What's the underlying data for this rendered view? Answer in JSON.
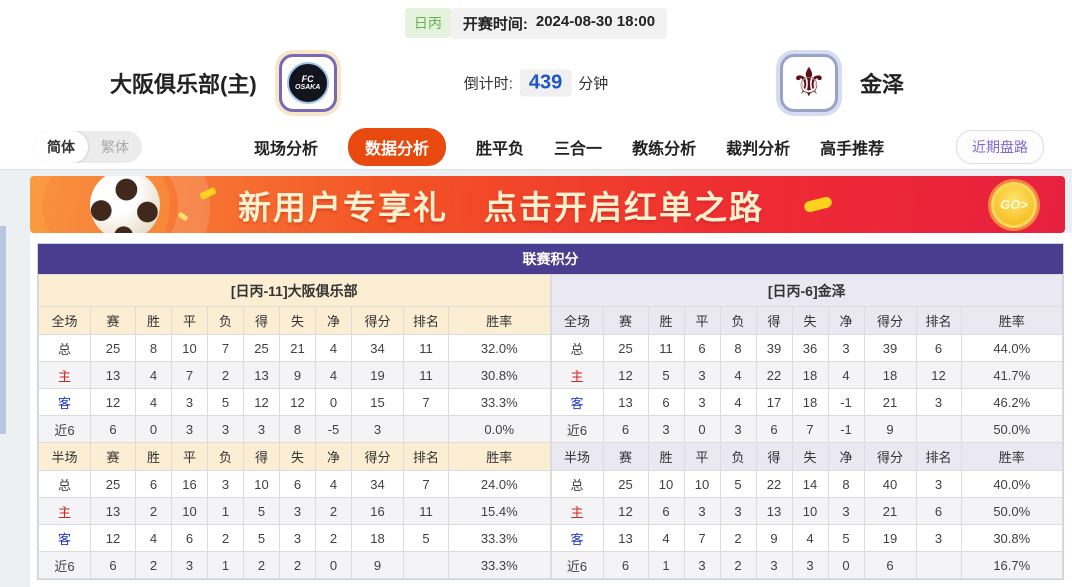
{
  "colors": {
    "accent": "#E8490F",
    "table_title_bg": "#4A3D90",
    "home_section_bg": "#FBEED3",
    "away_section_bg": "#E9E8F3",
    "home_label": "#CC2222",
    "away_label": "#2337C6",
    "countdown_value": "#1D56C6",
    "league_badge_text": "#6CAE53"
  },
  "top_bar": {
    "league_badge": "日丙",
    "kickoff_label": "开赛时间:",
    "kickoff_time": "2024-08-30 18:00"
  },
  "match": {
    "home_team": "大阪俱乐部(主)",
    "away_team": "金泽",
    "home_logo_text": "FC",
    "home_logo_subtext": "OSAKA",
    "countdown_label": "倒计时:",
    "countdown_value": "439",
    "countdown_unit": "分钟"
  },
  "icons": {
    "away_crest": "⚜",
    "go_arrow": "GO>"
  },
  "nav": {
    "language_toggle": {
      "simplified": "简体",
      "traditional": "繁体",
      "active": "简体"
    },
    "tabs": [
      "现场分析",
      "数据分析",
      "胜平负",
      "三合一",
      "教练分析",
      "裁判分析",
      "高手推荐"
    ],
    "active_tab": "数据分析",
    "recent_trend_button": "近期盘路"
  },
  "banner": {
    "text_main": "新用户专享礼",
    "text_secondary": "点击开启红单之路",
    "go_button": "GO>"
  },
  "league_table": {
    "title": "联赛积分",
    "columns_full_time": [
      "全场",
      "赛",
      "胜",
      "平",
      "负",
      "得",
      "失",
      "净",
      "得分",
      "排名",
      "胜率"
    ],
    "columns_half_time": [
      "半场",
      "赛",
      "胜",
      "平",
      "负",
      "得",
      "失",
      "净",
      "得分",
      "排名",
      "胜率"
    ],
    "home": {
      "section_label": "[日丙-11]大阪俱乐部",
      "full_time": {
        "rows": [
          {
            "type": "total",
            "label": "总",
            "values": [
              "25",
              "8",
              "10",
              "7",
              "25",
              "21",
              "4",
              "34",
              "11",
              "32.0%"
            ]
          },
          {
            "type": "home",
            "label": "主",
            "values": [
              "13",
              "4",
              "7",
              "2",
              "13",
              "9",
              "4",
              "19",
              "11",
              "30.8%"
            ]
          },
          {
            "type": "away",
            "label": "客",
            "values": [
              "12",
              "4",
              "3",
              "5",
              "12",
              "12",
              "0",
              "15",
              "7",
              "33.3%"
            ]
          },
          {
            "type": "recent6",
            "label": "近6",
            "values": [
              "6",
              "0",
              "3",
              "3",
              "3",
              "8",
              "-5",
              "3",
              "",
              "0.0%"
            ]
          }
        ]
      },
      "half_time": {
        "rows": [
          {
            "type": "total",
            "label": "总",
            "values": [
              "25",
              "6",
              "16",
              "3",
              "10",
              "6",
              "4",
              "34",
              "7",
              "24.0%"
            ]
          },
          {
            "type": "home",
            "label": "主",
            "values": [
              "13",
              "2",
              "10",
              "1",
              "5",
              "3",
              "2",
              "16",
              "11",
              "15.4%"
            ]
          },
          {
            "type": "away",
            "label": "客",
            "values": [
              "12",
              "4",
              "6",
              "2",
              "5",
              "3",
              "2",
              "18",
              "5",
              "33.3%"
            ]
          },
          {
            "type": "recent6",
            "label": "近6",
            "values": [
              "6",
              "2",
              "3",
              "1",
              "2",
              "2",
              "0",
              "9",
              "",
              "33.3%"
            ]
          }
        ]
      }
    },
    "away": {
      "section_label": "[日丙-6]金泽",
      "full_time": {
        "rows": [
          {
            "type": "total",
            "label": "总",
            "values": [
              "25",
              "11",
              "6",
              "8",
              "39",
              "36",
              "3",
              "39",
              "6",
              "44.0%"
            ]
          },
          {
            "type": "home",
            "label": "主",
            "values": [
              "12",
              "5",
              "3",
              "4",
              "22",
              "18",
              "4",
              "18",
              "12",
              "41.7%"
            ]
          },
          {
            "type": "away",
            "label": "客",
            "values": [
              "13",
              "6",
              "3",
              "4",
              "17",
              "18",
              "-1",
              "21",
              "3",
              "46.2%"
            ]
          },
          {
            "type": "recent6",
            "label": "近6",
            "values": [
              "6",
              "3",
              "0",
              "3",
              "6",
              "7",
              "-1",
              "9",
              "",
              "50.0%"
            ]
          }
        ]
      },
      "half_time": {
        "rows": [
          {
            "type": "total",
            "label": "总",
            "values": [
              "25",
              "10",
              "10",
              "5",
              "22",
              "14",
              "8",
              "40",
              "3",
              "40.0%"
            ]
          },
          {
            "type": "home",
            "label": "主",
            "values": [
              "12",
              "6",
              "3",
              "3",
              "13",
              "10",
              "3",
              "21",
              "6",
              "50.0%"
            ]
          },
          {
            "type": "away",
            "label": "客",
            "values": [
              "13",
              "4",
              "7",
              "2",
              "9",
              "4",
              "5",
              "19",
              "3",
              "30.8%"
            ]
          },
          {
            "type": "recent6",
            "label": "近6",
            "values": [
              "6",
              "1",
              "3",
              "2",
              "3",
              "3",
              "0",
              "6",
              "",
              "16.7%"
            ]
          }
        ]
      }
    }
  }
}
